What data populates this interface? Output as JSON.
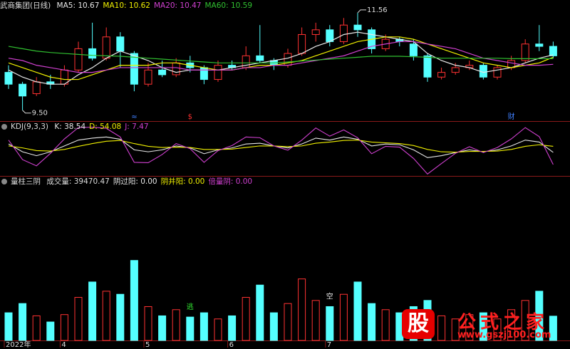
{
  "chart_data": [
    {
      "type": "candlestick",
      "title": "武商集团(日线)",
      "open": [
        10.3,
        10.05,
        9.85,
        10.1,
        10.05,
        10.35,
        10.8,
        10.6,
        11.05,
        10.7,
        10.05,
        10.35,
        10.25,
        10.5,
        10.4,
        10.15,
        10.45,
        10.4,
        10.65,
        10.55,
        10.45,
        10.7,
        11.1,
        11.2,
        10.95,
        11.3,
        11.2,
        10.8,
        11.0,
        10.9,
        10.65,
        10.2,
        10.3,
        10.4,
        10.45,
        10.2,
        10.4,
        10.55,
        10.9,
        10.85
      ],
      "close": [
        10.05,
        9.8,
        10.1,
        10.05,
        10.35,
        10.8,
        10.6,
        11.05,
        10.75,
        10.05,
        10.35,
        10.25,
        10.5,
        10.4,
        10.15,
        10.45,
        10.4,
        10.65,
        10.55,
        10.45,
        10.7,
        11.1,
        11.2,
        10.95,
        11.3,
        11.2,
        10.8,
        11.0,
        10.95,
        10.65,
        10.2,
        10.3,
        10.4,
        10.45,
        10.2,
        10.4,
        10.55,
        10.9,
        10.85,
        10.65
      ],
      "high": [
        10.45,
        10.1,
        10.2,
        10.25,
        10.45,
        10.95,
        11.35,
        11.25,
        11.15,
        10.75,
        10.5,
        10.55,
        10.6,
        10.65,
        10.45,
        10.55,
        10.55,
        10.85,
        11.3,
        10.6,
        10.8,
        11.25,
        11.35,
        11.3,
        11.45,
        11.56,
        11.25,
        11.1,
        11.05,
        11.0,
        10.7,
        10.4,
        10.5,
        10.55,
        10.5,
        10.45,
        10.65,
        11.0,
        11.3,
        10.95
      ],
      "low": [
        9.95,
        9.5,
        9.8,
        9.95,
        10.0,
        10.3,
        10.55,
        10.55,
        10.4,
        9.9,
        10.0,
        10.2,
        10.2,
        10.3,
        10.05,
        10.1,
        10.35,
        10.35,
        10.5,
        10.35,
        10.4,
        10.65,
        10.95,
        10.85,
        10.9,
        11.05,
        10.7,
        10.75,
        10.85,
        10.55,
        10.1,
        10.15,
        10.25,
        10.35,
        10.15,
        10.15,
        10.35,
        10.5,
        10.75,
        10.6
      ],
      "up_color": "#ff3232",
      "down_color": "#54ffff",
      "series": [
        {
          "name": "MA5: 10.67",
          "color": "#e8e8e8",
          "values": [
            10.35,
            10.2,
            10.1,
            10.05,
            10.05,
            10.25,
            10.4,
            10.6,
            10.75,
            10.65,
            10.55,
            10.4,
            10.3,
            10.35,
            10.35,
            10.35,
            10.4,
            10.45,
            10.5,
            10.55,
            10.6,
            10.7,
            10.85,
            10.95,
            11.1,
            11.15,
            11.1,
            11.05,
            11.0,
            10.95,
            10.7,
            10.55,
            10.45,
            10.4,
            10.3,
            10.35,
            10.4,
            10.5,
            10.6,
            10.67
          ]
        },
        {
          "name": "MA10: 10.62",
          "color": "#f0f000",
          "values": [
            10.5,
            10.4,
            10.3,
            10.2,
            10.15,
            10.15,
            10.25,
            10.35,
            10.45,
            10.45,
            10.45,
            10.5,
            10.5,
            10.45,
            10.4,
            10.35,
            10.35,
            10.4,
            10.45,
            10.45,
            10.5,
            10.55,
            10.65,
            10.75,
            10.85,
            10.95,
            11.0,
            11.05,
            11.05,
            11.0,
            10.9,
            10.8,
            10.7,
            10.6,
            10.5,
            10.45,
            10.4,
            10.45,
            10.5,
            10.62
          ]
        },
        {
          "name": "MA20: 10.47",
          "color": "#d040d0",
          "values": [
            10.6,
            10.55,
            10.45,
            10.4,
            10.35,
            10.3,
            10.3,
            10.35,
            10.4,
            10.4,
            10.4,
            10.4,
            10.4,
            10.35,
            10.35,
            10.35,
            10.35,
            10.4,
            10.4,
            10.45,
            10.45,
            10.5,
            10.55,
            10.6,
            10.65,
            10.75,
            10.85,
            10.9,
            10.95,
            10.95,
            10.9,
            10.85,
            10.8,
            10.7,
            10.6,
            10.55,
            10.5,
            10.45,
            10.45,
            10.47
          ]
        },
        {
          "name": "MA60: 10.59",
          "color": "#30c030",
          "values": [
            10.85,
            10.8,
            10.75,
            10.72,
            10.7,
            10.68,
            10.66,
            10.65,
            10.64,
            10.62,
            10.6,
            10.58,
            10.56,
            10.54,
            10.52,
            10.5,
            10.5,
            10.5,
            10.5,
            10.5,
            10.52,
            10.54,
            10.56,
            10.58,
            10.6,
            10.62,
            10.64,
            10.64,
            10.64,
            10.63,
            10.62,
            10.6,
            10.6,
            10.6,
            10.6,
            10.6,
            10.59,
            10.59,
            10.59,
            10.59
          ]
        }
      ],
      "ylim": [
        9.27,
        11.83
      ],
      "annotations": {
        "max_label": "11.56",
        "min_label": "9.50",
        "signals": [
          {
            "text": "≈",
            "index": 9,
            "color": "#4080ff"
          },
          {
            "text": "$",
            "index": 13,
            "color": "#ff3030"
          },
          {
            "text": "财",
            "index": 36,
            "color": "#4080ff"
          }
        ]
      }
    },
    {
      "type": "line",
      "title": "KDJ(9,3,3)",
      "series": [
        {
          "name": "K: 38.54",
          "color": "#e8e8e8",
          "values": [
            60,
            40,
            30,
            40,
            55,
            70,
            75,
            78,
            72,
            45,
            40,
            45,
            55,
            50,
            35,
            45,
            50,
            60,
            62,
            55,
            50,
            60,
            75,
            70,
            78,
            72,
            55,
            60,
            58,
            45,
            25,
            30,
            38,
            45,
            40,
            45,
            55,
            70,
            65,
            38.54
          ]
        },
        {
          "name": "D: 54.08",
          "color": "#f0f000",
          "values": [
            55,
            50,
            43,
            42,
            46,
            54,
            61,
            67,
            69,
            61,
            54,
            51,
            52,
            51,
            46,
            46,
            47,
            51,
            55,
            55,
            53,
            55,
            62,
            65,
            69,
            70,
            65,
            63,
            61,
            56,
            46,
            40,
            39,
            41,
            41,
            42,
            46,
            54,
            58,
            54.08
          ]
        },
        {
          "name": "J: 7.47",
          "color": "#d040d0",
          "values": [
            70,
            20,
            4,
            36,
            73,
            102,
            103,
            100,
            78,
            13,
            12,
            33,
            61,
            48,
            13,
            43,
            56,
            78,
            76,
            55,
            44,
            70,
            101,
            80,
            96,
            76,
            35,
            54,
            52,
            23,
            -17,
            10,
            36,
            53,
            38,
            51,
            73,
            102,
            79,
            7.47
          ]
        }
      ],
      "ylim": [
        -20,
        115
      ]
    },
    {
      "type": "bar",
      "title": "量柱三阴",
      "categories": [
        "2022年",
        null,
        null,
        null,
        "4",
        null,
        null,
        null,
        null,
        null,
        "5",
        null,
        null,
        null,
        null,
        null,
        "6",
        null,
        null,
        null,
        null,
        null,
        null,
        "7",
        null,
        null,
        null,
        null,
        null,
        null,
        null,
        null,
        null,
        null,
        null,
        null,
        null,
        null,
        null,
        null
      ],
      "series": [
        {
          "name": "成交量: 39470.47",
          "values": [
            45000,
            60000,
            40000,
            30000,
            42000,
            70000,
            95000,
            80000,
            75000,
            130000,
            55000,
            40000,
            50000,
            38000,
            45000,
            35000,
            40000,
            70000,
            90000,
            45000,
            60000,
            100000,
            65000,
            55000,
            75000,
            95000,
            60000,
            50000,
            45000,
            55000,
            65000,
            40000,
            35000,
            42000,
            45000,
            35000,
            50000,
            65000,
            80000,
            39470.47
          ]
        },
        {
          "name": "阴过阳: 0.00",
          "color": "#e8e8e8"
        },
        {
          "name": "阴并阳: 0.00",
          "color": "#f0f000"
        },
        {
          "name": "倍量阴: 0.00",
          "color": "#d040d0"
        }
      ],
      "ylim": [
        0,
        250000
      ],
      "annotations": [
        {
          "text": "逃",
          "index": 13,
          "color": "#30e030"
        },
        {
          "text": "空",
          "index": 23,
          "color": "#e8e8e8"
        }
      ]
    }
  ],
  "watermark": {
    "icon": "股",
    "name": "公式之家",
    "url": "www.gszj100.com"
  }
}
